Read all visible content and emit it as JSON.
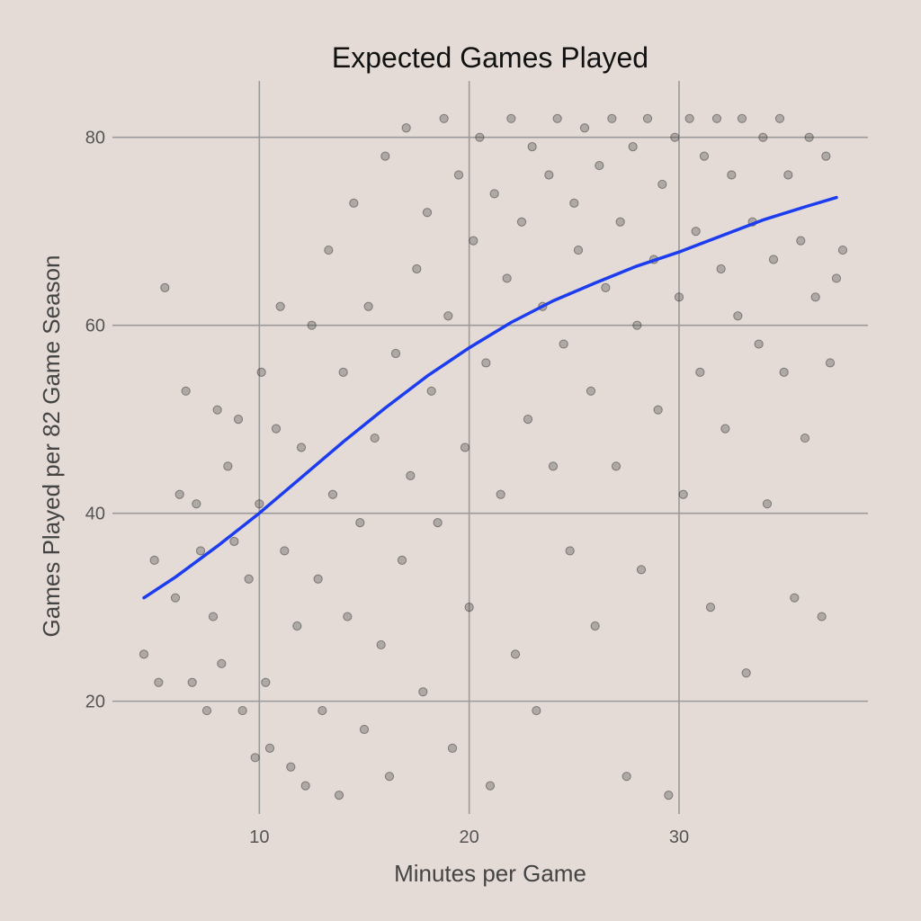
{
  "chart_data": {
    "type": "scatter",
    "title": "Expected Games Played",
    "xlabel": "Minutes per Game",
    "ylabel": "Games Played per 82 Game Season",
    "xlim": [
      3,
      39
    ],
    "ylim": [
      8,
      86
    ],
    "x_ticks": [
      10,
      20,
      30
    ],
    "y_ticks": [
      20,
      40,
      60,
      80
    ],
    "x_tick_labels": [
      "10",
      "20",
      "30"
    ],
    "y_tick_labels": [
      "20",
      "40",
      "60",
      "80"
    ],
    "grid": true,
    "legend": "none",
    "colors": {
      "background": "#e4dbd7",
      "points": "#2a2a2a",
      "trend_line": "#1c3cf0",
      "grid": "#9a9a9a"
    },
    "trend_line": {
      "x": [
        4.5,
        6,
        8,
        10,
        12,
        14,
        16,
        18,
        20,
        22,
        24,
        26,
        28,
        30,
        32,
        34,
        36,
        37.5
      ],
      "y": [
        31,
        33.2,
        36.5,
        40,
        43.8,
        47.6,
        51.2,
        54.6,
        57.6,
        60.3,
        62.6,
        64.5,
        66.3,
        67.8,
        69.5,
        71.2,
        72.6,
        73.6
      ]
    },
    "series": [
      {
        "points": [
          [
            4.5,
            25
          ],
          [
            5,
            35
          ],
          [
            5.2,
            22
          ],
          [
            5.5,
            64
          ],
          [
            6,
            31
          ],
          [
            6.2,
            42
          ],
          [
            6.5,
            53
          ],
          [
            6.8,
            22
          ],
          [
            7,
            41
          ],
          [
            7.2,
            36
          ],
          [
            7.5,
            19
          ],
          [
            7.8,
            29
          ],
          [
            8,
            51
          ],
          [
            8.2,
            24
          ],
          [
            8.5,
            45
          ],
          [
            8.8,
            37
          ],
          [
            9,
            50
          ],
          [
            9.2,
            19
          ],
          [
            9.5,
            33
          ],
          [
            9.8,
            14
          ],
          [
            10,
            41
          ],
          [
            10.1,
            55
          ],
          [
            10.3,
            22
          ],
          [
            10.5,
            15
          ],
          [
            10.8,
            49
          ],
          [
            11,
            62
          ],
          [
            11.2,
            36
          ],
          [
            11.5,
            13
          ],
          [
            11.8,
            28
          ],
          [
            12,
            47
          ],
          [
            12.2,
            11
          ],
          [
            12.5,
            60
          ],
          [
            12.8,
            33
          ],
          [
            13,
            19
          ],
          [
            13.3,
            68
          ],
          [
            13.5,
            42
          ],
          [
            13.8,
            10
          ],
          [
            14,
            55
          ],
          [
            14.2,
            29
          ],
          [
            14.5,
            73
          ],
          [
            14.8,
            39
          ],
          [
            15,
            17
          ],
          [
            15.2,
            62
          ],
          [
            15.5,
            48
          ],
          [
            15.8,
            26
          ],
          [
            16,
            78
          ],
          [
            16.2,
            12
          ],
          [
            16.5,
            57
          ],
          [
            16.8,
            35
          ],
          [
            17,
            81
          ],
          [
            17.2,
            44
          ],
          [
            17.5,
            66
          ],
          [
            17.8,
            21
          ],
          [
            18,
            72
          ],
          [
            18.2,
            53
          ],
          [
            18.5,
            39
          ],
          [
            18.8,
            82
          ],
          [
            19,
            61
          ],
          [
            19.2,
            15
          ],
          [
            19.5,
            76
          ],
          [
            19.8,
            47
          ],
          [
            20,
            30
          ],
          [
            20.2,
            69
          ],
          [
            20.5,
            80
          ],
          [
            20.8,
            56
          ],
          [
            21,
            11
          ],
          [
            21.2,
            74
          ],
          [
            21.5,
            42
          ],
          [
            21.8,
            65
          ],
          [
            22,
            82
          ],
          [
            22.2,
            25
          ],
          [
            22.5,
            71
          ],
          [
            22.8,
            50
          ],
          [
            23,
            79
          ],
          [
            23.2,
            19
          ],
          [
            23.5,
            62
          ],
          [
            23.8,
            76
          ],
          [
            24,
            45
          ],
          [
            24.2,
            82
          ],
          [
            24.5,
            58
          ],
          [
            24.8,
            36
          ],
          [
            25,
            73
          ],
          [
            25.2,
            68
          ],
          [
            25.5,
            81
          ],
          [
            25.8,
            53
          ],
          [
            26,
            28
          ],
          [
            26.2,
            77
          ],
          [
            26.5,
            64
          ],
          [
            26.8,
            82
          ],
          [
            27,
            45
          ],
          [
            27.2,
            71
          ],
          [
            27.5,
            12
          ],
          [
            27.8,
            79
          ],
          [
            28,
            60
          ],
          [
            28.2,
            34
          ],
          [
            28.5,
            82
          ],
          [
            28.8,
            67
          ],
          [
            29,
            51
          ],
          [
            29.2,
            75
          ],
          [
            29.5,
            10
          ],
          [
            29.8,
            80
          ],
          [
            30,
            63
          ],
          [
            30.2,
            42
          ],
          [
            30.5,
            82
          ],
          [
            30.8,
            70
          ],
          [
            31,
            55
          ],
          [
            31.2,
            78
          ],
          [
            31.5,
            30
          ],
          [
            31.8,
            82
          ],
          [
            32,
            66
          ],
          [
            32.2,
            49
          ],
          [
            32.5,
            76
          ],
          [
            32.8,
            61
          ],
          [
            33,
            82
          ],
          [
            33.2,
            23
          ],
          [
            33.5,
            71
          ],
          [
            33.8,
            58
          ],
          [
            34,
            80
          ],
          [
            34.2,
            41
          ],
          [
            34.5,
            67
          ],
          [
            34.8,
            82
          ],
          [
            35,
            55
          ],
          [
            35.2,
            76
          ],
          [
            35.5,
            31
          ],
          [
            35.8,
            69
          ],
          [
            36,
            48
          ],
          [
            36.2,
            80
          ],
          [
            36.5,
            63
          ],
          [
            36.8,
            29
          ],
          [
            37,
            78
          ],
          [
            37.2,
            56
          ],
          [
            37.5,
            65
          ],
          [
            37.8,
            68
          ]
        ]
      }
    ]
  }
}
